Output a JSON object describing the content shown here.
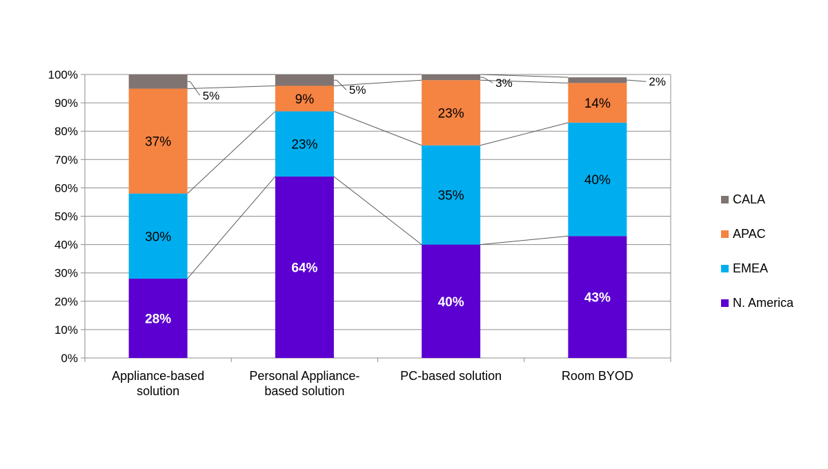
{
  "chart_data": {
    "type": "bar",
    "stacked": true,
    "percent": true,
    "categories": [
      "Appliance-based solution",
      "Personal Appliance-based solution",
      "PC-based solution",
      "Room BYOD"
    ],
    "category_label_lines": [
      [
        "Appliance-based",
        "solution"
      ],
      [
        "Personal Appliance-",
        "based solution"
      ],
      [
        "PC-based solution"
      ],
      [
        "Room BYOD"
      ]
    ],
    "series": [
      {
        "name": "N. America",
        "color": "#5b00d0",
        "values": [
          28,
          64,
          40,
          43
        ],
        "labels": [
          "28%",
          "64%",
          "40%",
          "43%"
        ]
      },
      {
        "name": "EMEA",
        "color": "#00aeef",
        "values": [
          30,
          23,
          35,
          40
        ],
        "labels": [
          "30%",
          "23%",
          "35%",
          "40%"
        ]
      },
      {
        "name": "APAC",
        "color": "#f58342",
        "values": [
          37,
          9,
          23,
          14
        ],
        "labels": [
          "37%",
          "9%",
          "23%",
          "14%"
        ]
      },
      {
        "name": "CALA",
        "color": "#7f7471",
        "values": [
          5,
          5,
          3,
          2
        ],
        "labels": [
          "5%",
          "5%",
          "3%",
          "2%"
        ]
      }
    ],
    "y_ticks": [
      "0%",
      "10%",
      "20%",
      "30%",
      "40%",
      "50%",
      "60%",
      "70%",
      "80%",
      "90%",
      "100%"
    ],
    "ylim": [
      0,
      100
    ],
    "grid": true,
    "series_lines": true,
    "legend_position": "right",
    "title": "",
    "xlabel": "",
    "ylabel": ""
  }
}
